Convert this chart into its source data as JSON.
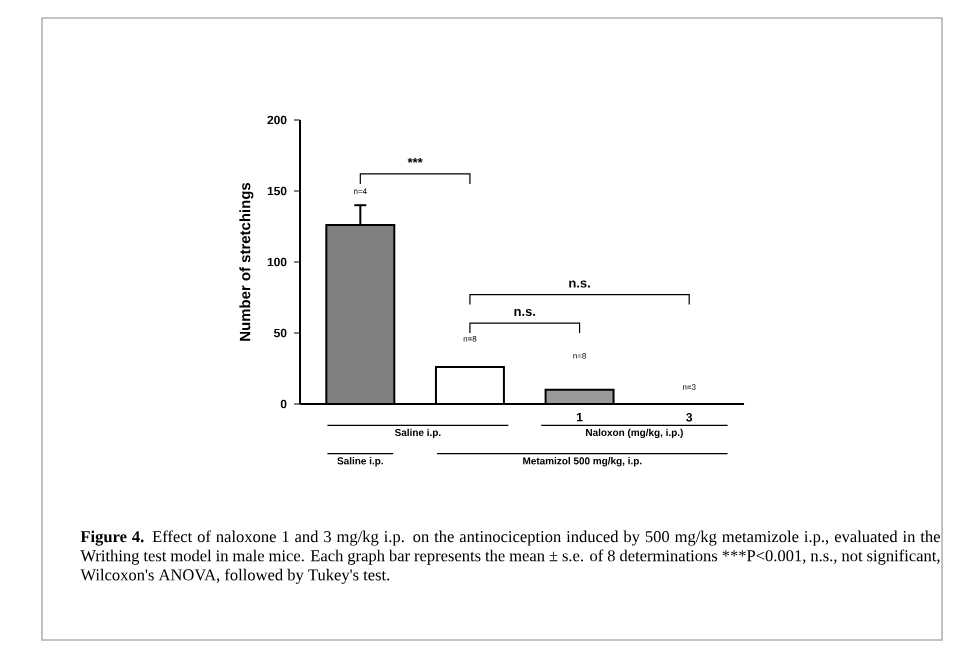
{
  "chart_data": {
    "type": "bar",
    "ylabel": "Number of stretchings",
    "categories": [
      null,
      null,
      "1",
      "3"
    ],
    "values": [
      126,
      26,
      10,
      0
    ],
    "errors": [
      14,
      null,
      null,
      null
    ],
    "colors": [
      "#808080",
      "#ffffff",
      "#999999",
      "#000000"
    ],
    "ylim": [
      0,
      200
    ],
    "yticks": [
      0,
      50,
      100,
      150,
      200
    ],
    "annotations": [
      "n=4",
      "n=8",
      "n=8",
      "n=3",
      "***",
      "n.s.",
      "n.s.",
      "Saline i.p.",
      "Naloxon (mg/kg, i.p.)",
      "Saline i.p.",
      "Metamizol  500 mg/kg, i.p.",
      "**Figure 4.** Effect of naloxone 1 and 3 mg/kg i.p. on the antinociception induced by 500 mg/kg metamizole i.p., evaluated in the Writhing test model in male mice. Each graph bar represents the mean ± s.e. of 8 determinations ***P<0.001, n.s., not significant, Wilcoxon's ANOVA, followed by Tukey's test."
    ]
  }
}
